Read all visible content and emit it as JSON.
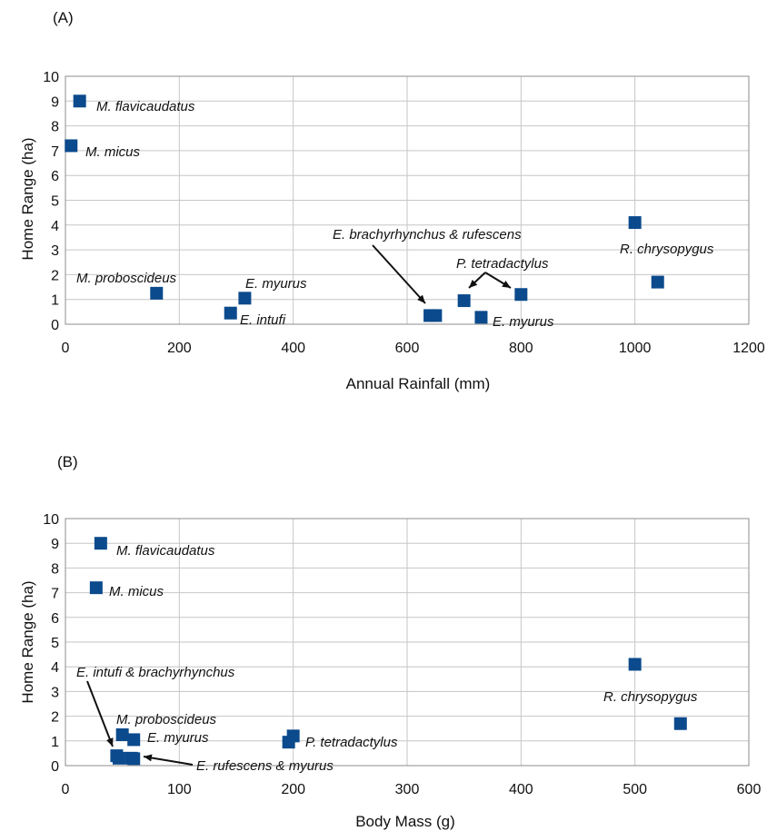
{
  "chart_data": [
    {
      "type": "scatter",
      "panel_label": "(A)",
      "xlabel": "Annual Rainfall (mm)",
      "ylabel": "Home Range (ha)",
      "xlim": [
        0,
        1200
      ],
      "ylim": [
        0,
        10
      ],
      "xticks": [
        0,
        200,
        400,
        600,
        800,
        1000,
        1200
      ],
      "yticks": [
        0,
        1,
        2,
        3,
        4,
        5,
        6,
        7,
        8,
        9,
        10
      ],
      "grid": true,
      "marker_color": "#0b4a8c",
      "points": [
        {
          "x": 25,
          "y": 9.0
        },
        {
          "x": 10,
          "y": 7.2
        },
        {
          "x": 160,
          "y": 1.25
        },
        {
          "x": 290,
          "y": 0.45
        },
        {
          "x": 315,
          "y": 1.05
        },
        {
          "x": 640,
          "y": 0.35
        },
        {
          "x": 650,
          "y": 0.35
        },
        {
          "x": 700,
          "y": 0.95
        },
        {
          "x": 730,
          "y": 0.28
        },
        {
          "x": 800,
          "y": 1.2
        },
        {
          "x": 1000,
          "y": 4.1
        },
        {
          "x": 1040,
          "y": 1.7
        }
      ],
      "annotations": [
        {
          "text": "M. flavicaudatus"
        },
        {
          "text": "M. micus"
        },
        {
          "text": "M. proboscideus"
        },
        {
          "text": "E. myurus"
        },
        {
          "text": "E. intufi"
        },
        {
          "text": "E. brachyrhynchus & rufescens"
        },
        {
          "text": "P. tetradactylus"
        },
        {
          "text": "E. myurus"
        },
        {
          "text": "R. chrysopygus"
        }
      ]
    },
    {
      "type": "scatter",
      "panel_label": "(B)",
      "xlabel": "Body Mass (g)",
      "ylabel": "Home Range (ha)",
      "xlim": [
        0,
        600
      ],
      "ylim": [
        0,
        10
      ],
      "xticks": [
        0,
        100,
        200,
        300,
        400,
        500,
        600
      ],
      "yticks": [
        0,
        1,
        2,
        3,
        4,
        5,
        6,
        7,
        8,
        9,
        10
      ],
      "grid": true,
      "marker_color": "#0b4a8c",
      "points": [
        {
          "x": 31,
          "y": 9.0
        },
        {
          "x": 27,
          "y": 7.2
        },
        {
          "x": 50,
          "y": 1.25
        },
        {
          "x": 60,
          "y": 1.05
        },
        {
          "x": 45,
          "y": 0.4
        },
        {
          "x": 47,
          "y": 0.3
        },
        {
          "x": 58,
          "y": 0.3
        },
        {
          "x": 60,
          "y": 0.28
        },
        {
          "x": 196,
          "y": 0.95
        },
        {
          "x": 200,
          "y": 1.2
        },
        {
          "x": 500,
          "y": 4.1
        },
        {
          "x": 540,
          "y": 1.7
        }
      ],
      "annotations": [
        {
          "text": "M. flavicaudatus"
        },
        {
          "text": "M. micus"
        },
        {
          "text": "E. intufi & brachyrhynchus"
        },
        {
          "text": "M. proboscideus"
        },
        {
          "text": "E. myurus"
        },
        {
          "text": "E. rufescens & myurus"
        },
        {
          "text": "P. tetradactylus"
        },
        {
          "text": "R. chrysopygus"
        }
      ]
    }
  ]
}
